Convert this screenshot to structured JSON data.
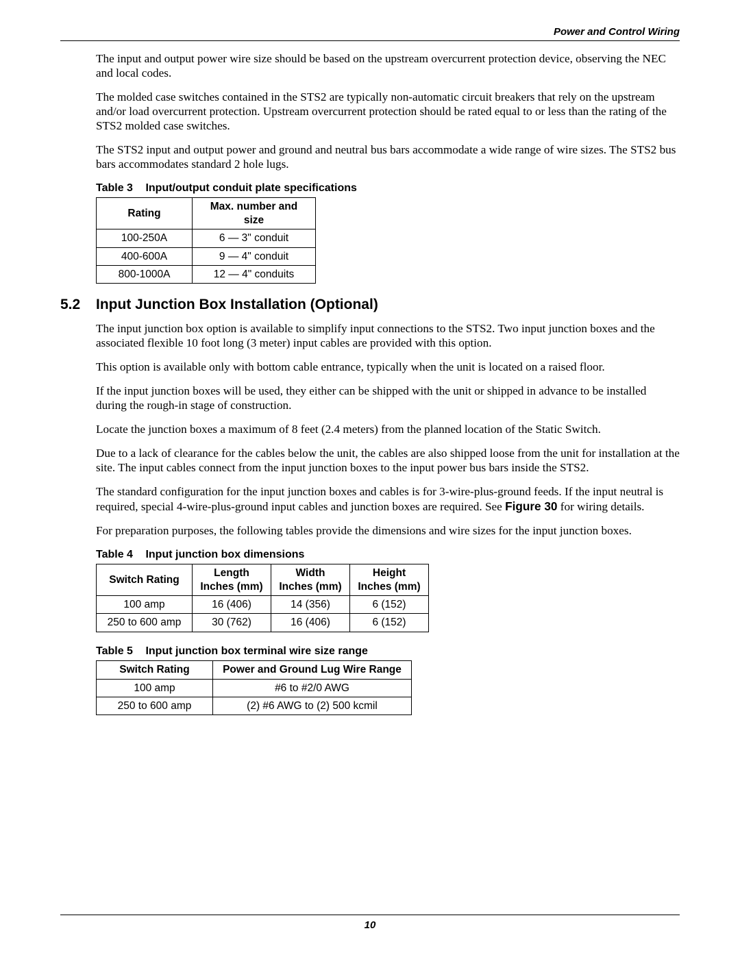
{
  "header_right": "Power and Control Wiring",
  "page_number": "10",
  "intro_paras": [
    "The input and output power wire size should be based on the upstream overcurrent protection device, observing the NEC and local codes.",
    "The molded case switches contained in the STS2 are typically non-automatic circuit breakers that rely on the upstream and/or load overcurrent protection. Upstream overcurrent protection should be rated equal to or less than the rating of the STS2 molded case switches.",
    "The STS2 input and output power and ground and neutral bus bars accommodate a wide range of wire sizes. The STS2 bus bars accommodates standard 2 hole lugs."
  ],
  "table3": {
    "label": "Table 3",
    "title": "Input/output conduit plate specifications",
    "headers": [
      "Rating",
      "Max. number and size"
    ],
    "col_widths": [
      "140px",
      "180px"
    ],
    "rows": [
      [
        "100-250A",
        "6 — 3\" conduit"
      ],
      [
        "400-600A",
        "9 — 4\" conduit"
      ],
      [
        "800-1000A",
        "12 — 4\" conduits"
      ]
    ]
  },
  "section": {
    "number": "5.2",
    "title": "Input Junction Box Installation (Optional)"
  },
  "section_paras": [
    "The input junction box option is available to simplify input connections to the STS2. Two input junction boxes and the associated flexible 10 foot long (3 meter) input cables are provided with this option.",
    "This option is available only with bottom cable entrance, typically when the unit is located on a raised floor.",
    "If the input junction boxes will be used, they either can be shipped with the unit or shipped in advance to be installed during the rough-in stage of construction.",
    "Locate the junction boxes a maximum of 8 feet (2.4 meters) from the planned location of the Static Switch.",
    "Due to a lack of clearance for the cables below the unit, the cables are also shipped loose from the unit for installation at the site. The input cables connect from the input junction boxes to the input power bus bars inside the STS2."
  ],
  "figref_para": {
    "pre": "The standard configuration for the input junction boxes and cables is for 3-wire-plus-ground feeds. If the input neutral is required, special 4-wire-plus-ground input cables and junction boxes are required. See ",
    "ref": "Figure 30",
    "post": " for wiring details."
  },
  "post_figref_para": "For preparation purposes, the following tables provide the dimensions and wire sizes for the input junction boxes.",
  "table4": {
    "label": "Table 4",
    "title": "Input junction box dimensions",
    "headers": [
      "Switch Rating",
      "Length\nInches (mm)",
      "Width\nInches (mm)",
      "Height\nInches (mm)"
    ],
    "col_widths": [
      "140px",
      "115px",
      "115px",
      "115px"
    ],
    "rows": [
      [
        "100 amp",
        "16 (406)",
        "14 (356)",
        "6 (152)"
      ],
      [
        "250 to 600 amp",
        "30 (762)",
        "16 (406)",
        "6 (152)"
      ]
    ]
  },
  "table5": {
    "label": "Table 5",
    "title": "Input junction box terminal wire size range",
    "headers": [
      "Switch Rating",
      "Power and Ground Lug Wire Range"
    ],
    "col_widths": [
      "170px",
      "290px"
    ],
    "rows": [
      [
        "100 amp",
        "#6 to #2/0 AWG"
      ],
      [
        "250 to 600 amp",
        "(2) #6 AWG to (2) 500 kcmil"
      ]
    ]
  }
}
